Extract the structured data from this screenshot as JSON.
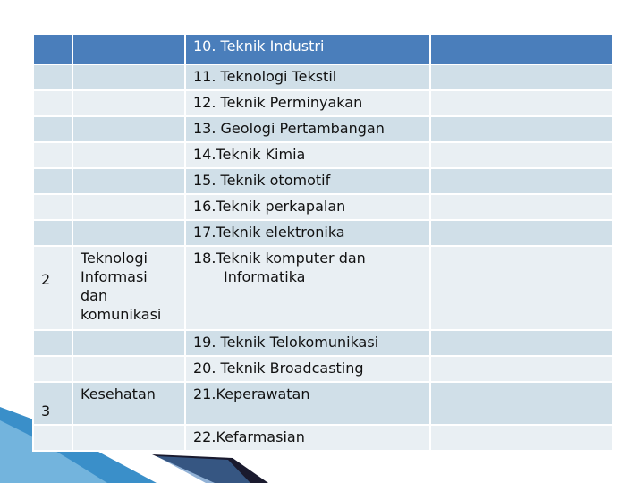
{
  "table": {
    "rows": [
      {
        "no": "",
        "category": "",
        "program": "10. Teknik Industri",
        "extra": ""
      },
      {
        "no": "",
        "category": "",
        "program": "11. Teknologi Tekstil",
        "extra": ""
      },
      {
        "no": "",
        "category": "",
        "program": "12. Teknik Perminyakan",
        "extra": ""
      },
      {
        "no": "",
        "category": "",
        "program": "13. Geologi Pertambangan",
        "extra": ""
      },
      {
        "no": "",
        "category": "",
        "program": "14.Teknik Kimia",
        "extra": ""
      },
      {
        "no": "",
        "category": "",
        "program": "15. Teknik otomotif",
        "extra": ""
      },
      {
        "no": "",
        "category": "",
        "program": "16.Teknik perkapalan",
        "extra": ""
      },
      {
        "no": "",
        "category": "",
        "program": "17.Teknik elektronika",
        "extra": ""
      },
      {
        "no": "2",
        "category": "Teknologi Informasi dan komunikasi",
        "program_line1": "18.Teknik komputer dan",
        "program_line2": "Informatika",
        "extra": ""
      },
      {
        "no": "",
        "category": "",
        "program": "19. Teknik Telokomunikasi",
        "extra": ""
      },
      {
        "no": "",
        "category": "",
        "program": "20. Teknik Broadcasting",
        "extra": ""
      },
      {
        "no": "3",
        "category": "Kesehatan",
        "program": "21.Keperawatan",
        "extra": ""
      },
      {
        "no": "",
        "category": "",
        "program": "22.Kefarmasian",
        "extra": ""
      }
    ]
  },
  "colors": {
    "header_bg": "#4a7ebb",
    "row_dark": "#d0dfe8",
    "row_light": "#e9eff3",
    "accent_blue": "#3a8fc9",
    "accent_dark": "#1a1a2e"
  }
}
